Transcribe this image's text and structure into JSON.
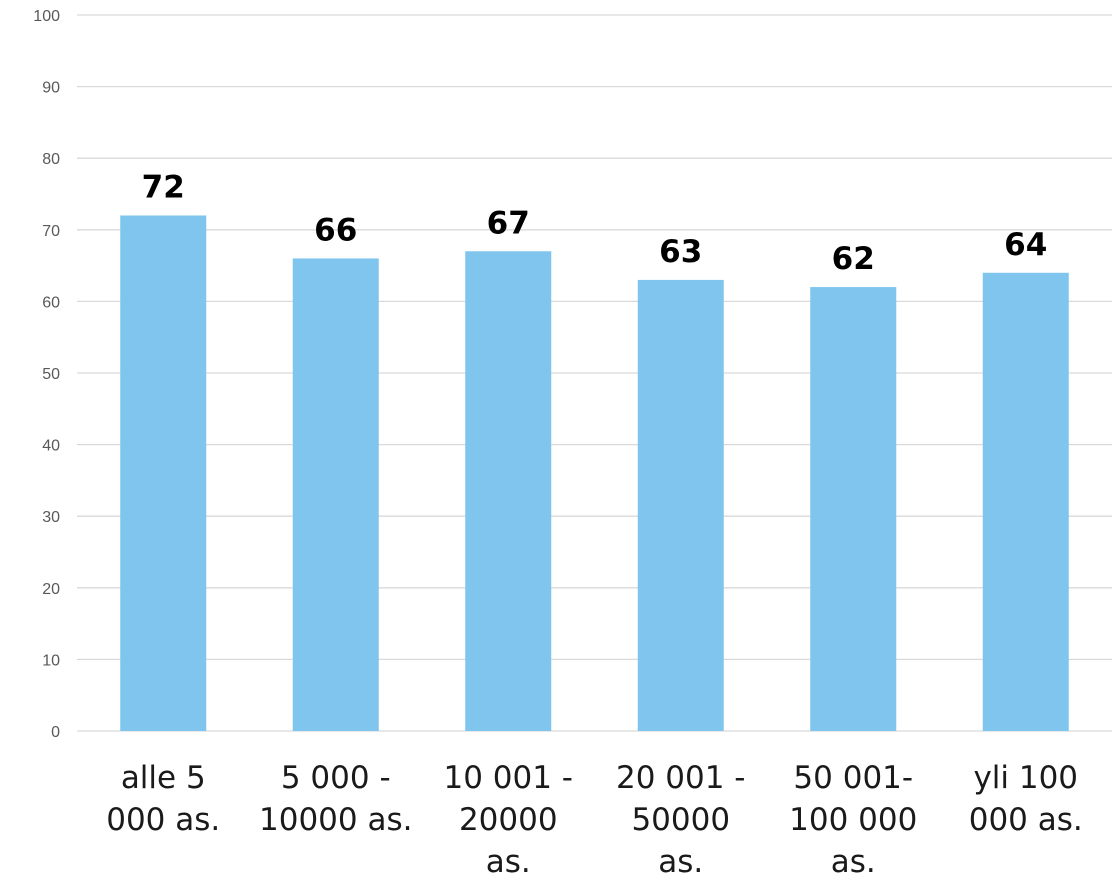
{
  "chart_data": {
    "type": "bar",
    "categories": [
      [
        "alle 5",
        "000 as."
      ],
      [
        "5 000 -",
        "10000 as."
      ],
      [
        "10 001 -",
        "20000",
        "as."
      ],
      [
        "20 001 -",
        "50000",
        "as."
      ],
      [
        "50 001-",
        "100 000",
        "as."
      ],
      [
        "yli 100",
        "000 as."
      ]
    ],
    "values": [
      72,
      66,
      67,
      63,
      62,
      64
    ],
    "ylim": [
      0,
      100
    ],
    "yticks": [
      0,
      10,
      20,
      30,
      40,
      50,
      60,
      70,
      80,
      90,
      100
    ],
    "grid": true,
    "legend": "none",
    "title": "",
    "xlabel": "",
    "ylabel": "",
    "bar_color": "#7fc5ee"
  }
}
